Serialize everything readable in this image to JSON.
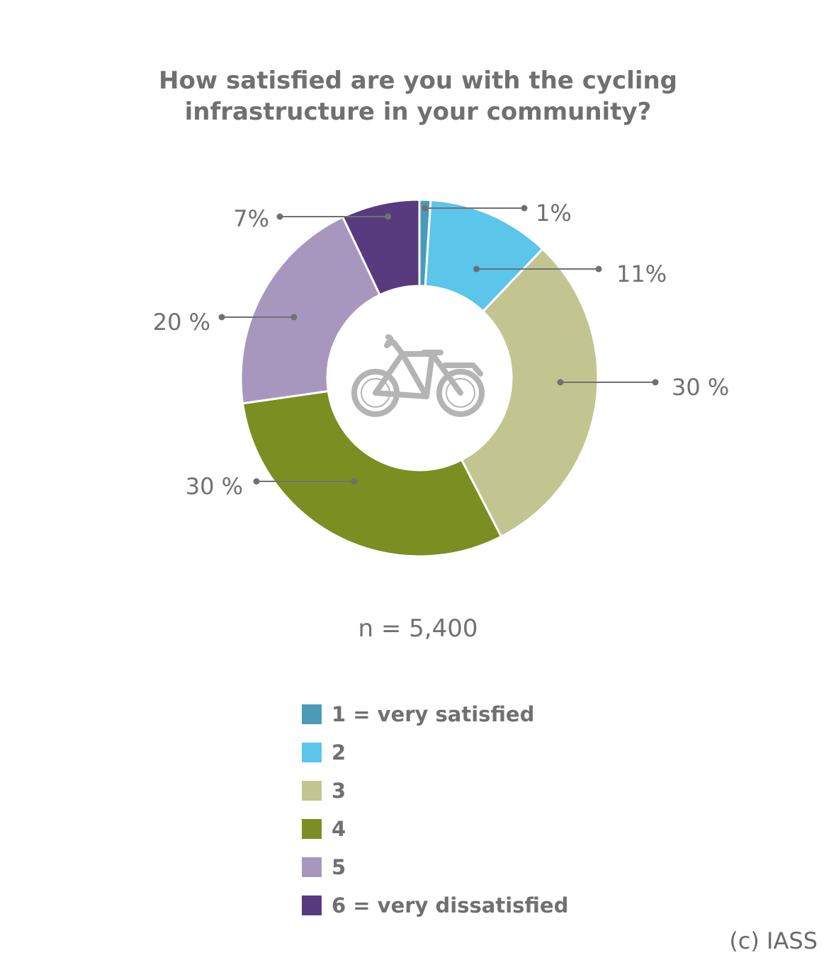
{
  "title": {
    "line1": "How satisfied are you with the cycling",
    "line2": "infrastructure in your community?"
  },
  "icons": {
    "center": "bicycle-icon"
  },
  "chart_data": {
    "type": "pie",
    "donut": true,
    "categories": [
      "1 = very satisfied",
      "2",
      "3",
      "4",
      "5",
      "6 = very dissatisfied"
    ],
    "values": [
      1,
      11,
      30,
      30,
      20,
      7
    ],
    "data_labels": [
      "1%",
      "11%",
      "30 %",
      "30 %",
      "20 %",
      "7%"
    ],
    "colors": [
      "#4a9bb8",
      "#5cc5ea",
      "#c2c590",
      "#7a8e22",
      "#a797bf",
      "#573b7e"
    ],
    "legend": "bottom"
  },
  "sample_size": "n = 5,400",
  "copyright": "(c) IASS"
}
